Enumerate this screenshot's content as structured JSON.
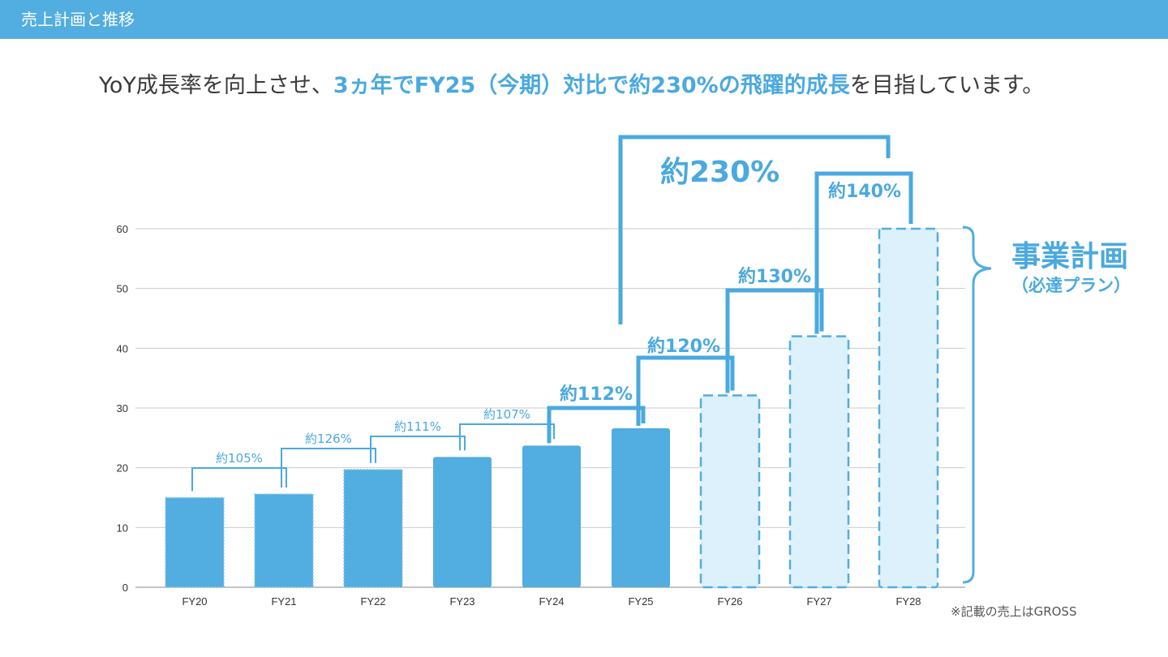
{
  "header": {
    "title": "売上計画と推移"
  },
  "headline": {
    "prefix": "YoY成長率を向上させ、",
    "highlight": "3ヵ年でFY25（今期）対比で約230%の飛躍的成長",
    "suffix": "を目指しています。"
  },
  "plan_label": {
    "title": "事業計画",
    "subtitle": "（必達プラン）"
  },
  "footnote": "※記載の売上はGROSS",
  "colors": {
    "header": "#52ade1",
    "accent": "#4aa9df",
    "bar_actual": "#52ade1",
    "bar_plan_fill": "#ddf1fc",
    "bar_plan_border": "#52ade1",
    "grid": "#cccccc"
  },
  "chart_data": {
    "type": "bar",
    "categories": [
      "FY20",
      "FY21",
      "FY22",
      "FY23",
      "FY24",
      "FY25",
      "FY26",
      "FY27",
      "FY28"
    ],
    "values": [
      15,
      15.6,
      19.7,
      21.8,
      23.7,
      26.6,
      32.1,
      42,
      60
    ],
    "bar_kind": [
      "actual-dotted",
      "actual-dotted",
      "actual-dotted",
      "actual",
      "actual",
      "actual",
      "plan",
      "plan",
      "plan"
    ],
    "yticks": [
      0,
      10,
      20,
      30,
      40,
      50,
      60
    ],
    "ylim": [
      0,
      60
    ],
    "grid": true,
    "title": "",
    "xlabel": "",
    "ylabel": "",
    "growth_annotations": [
      {
        "from": "FY20",
        "to": "FY21",
        "label": "約105%",
        "style": "thin"
      },
      {
        "from": "FY21",
        "to": "FY22",
        "label": "約126%",
        "style": "thin"
      },
      {
        "from": "FY22",
        "to": "FY23",
        "label": "約111%",
        "style": "thin"
      },
      {
        "from": "FY23",
        "to": "FY24",
        "label": "約107%",
        "style": "thin"
      },
      {
        "from": "FY24",
        "to": "FY25",
        "label": "約112%",
        "style": "bold"
      },
      {
        "from": "FY25",
        "to": "FY26",
        "label": "約120%",
        "style": "bold"
      },
      {
        "from": "FY26",
        "to": "FY27",
        "label": "約130%",
        "style": "bold"
      },
      {
        "from": "FY27",
        "to": "FY28",
        "label": "約140%",
        "style": "bold"
      },
      {
        "from": "FY25",
        "to": "FY28",
        "label": "約230%",
        "style": "big"
      }
    ]
  }
}
